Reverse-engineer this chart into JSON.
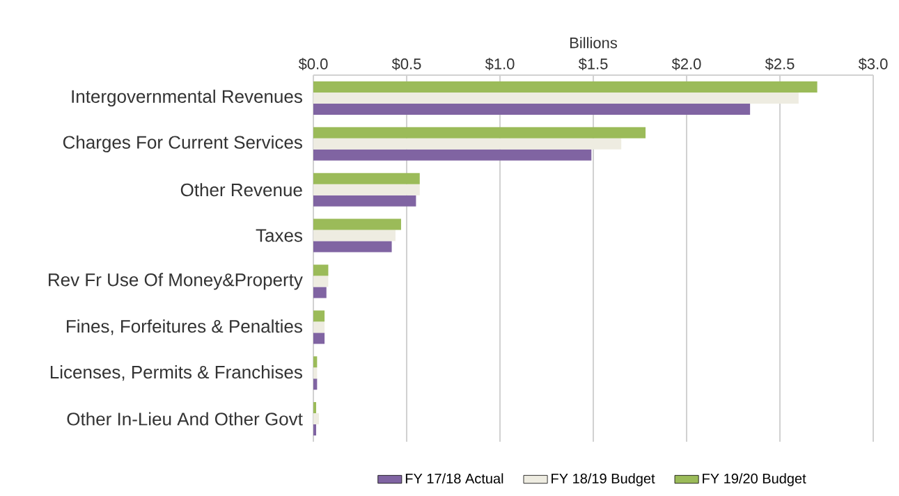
{
  "chart_data": {
    "type": "bar",
    "orientation": "horizontal",
    "xlabel": "Billions",
    "categories": [
      "Intergovernmental Revenues",
      "Charges For Current Services",
      "Other Revenue",
      "Taxes",
      "Rev Fr Use Of Money&Property",
      "Fines, Forfeitures & Penalties",
      "Licenses, Permits & Franchises",
      "Other In-Lieu And Other Govt"
    ],
    "series": [
      {
        "name": "FY 17/18 Actual",
        "color": "#8064a2",
        "values": [
          2.34,
          1.49,
          0.55,
          0.42,
          0.07,
          0.06,
          0.02,
          0.015
        ]
      },
      {
        "name": "FY 18/19 Budget",
        "color": "#eeece1",
        "values": [
          2.6,
          1.65,
          0.57,
          0.44,
          0.08,
          0.06,
          0.02,
          0.03
        ]
      },
      {
        "name": "FY 19/20 Budget",
        "color": "#9bbb59",
        "values": [
          2.7,
          1.78,
          0.57,
          0.47,
          0.08,
          0.06,
          0.02,
          0.015
        ]
      }
    ],
    "xlim": [
      0,
      3
    ],
    "xticks": [
      {
        "value": 0,
        "label": "$0.0"
      },
      {
        "value": 0.5,
        "label": "$0.5"
      },
      {
        "value": 1,
        "label": "$1.0"
      },
      {
        "value": 1.5,
        "label": "$1.5"
      },
      {
        "value": 2,
        "label": "$2.0"
      },
      {
        "value": 2.5,
        "label": "$2.5"
      },
      {
        "value": 3,
        "label": "$3.0"
      }
    ],
    "grid": "x",
    "legend": "bottom"
  }
}
